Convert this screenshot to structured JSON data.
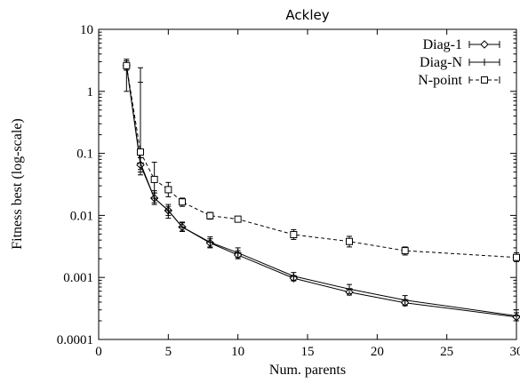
{
  "chart_data": {
    "type": "line",
    "title": "Ackley",
    "xlabel": "Num. parents",
    "ylabel": "Fitness best (log-scale)",
    "xlim": [
      0,
      30
    ],
    "ylim": [
      0.0001,
      10
    ],
    "y_scale": "log",
    "grid": false,
    "legend_position": "top-right",
    "x_ticks": [
      0,
      5,
      10,
      15,
      20,
      25,
      30
    ],
    "x_tick_labels": [
      "0",
      "5",
      "10",
      "15",
      "20",
      "25",
      "30"
    ],
    "y_ticks": [
      0.0001,
      0.001,
      0.01,
      0.1,
      1,
      10
    ],
    "y_tick_labels": [
      "0.0001",
      "0.001",
      "0.01",
      "0.1",
      "1",
      "10"
    ],
    "x": [
      2,
      3,
      4,
      5,
      6,
      8,
      10,
      14,
      18,
      22,
      30
    ],
    "series": [
      {
        "name": "Diag-1",
        "line_style": "solid",
        "marker": "diamond",
        "values": [
          2.6,
          0.065,
          0.019,
          0.012,
          0.0065,
          0.0036,
          0.0023,
          0.00097,
          0.00058,
          0.00039,
          0.00023
        ],
        "err_low": [
          2.2,
          0.05,
          0.016,
          0.01,
          0.0056,
          0.0031,
          0.002,
          0.00088,
          0.00052,
          0.00035,
          0.0002
        ],
        "err_high": [
          3.1,
          0.085,
          0.023,
          0.014,
          0.0076,
          0.0042,
          0.0027,
          0.00107,
          0.00066,
          0.00044,
          0.00027
        ]
      },
      {
        "name": "Diag-N",
        "line_style": "solid",
        "marker": "plus",
        "values": [
          2.6,
          0.07,
          0.019,
          0.012,
          0.0065,
          0.0037,
          0.0025,
          0.00105,
          0.00065,
          0.00043,
          0.00024
        ],
        "err_low": [
          1.0,
          0.045,
          0.015,
          0.009,
          0.0055,
          0.003,
          0.0021,
          0.0009,
          0.00055,
          0.00036,
          0.0002
        ],
        "err_high": [
          3.3,
          2.4,
          0.025,
          0.015,
          0.0078,
          0.0045,
          0.003,
          0.0012,
          0.00077,
          0.00051,
          0.0003
        ]
      },
      {
        "name": "N-point",
        "line_style": "dashed",
        "marker": "square",
        "values": [
          2.6,
          0.105,
          0.038,
          0.026,
          0.0165,
          0.0099,
          0.0087,
          0.0049,
          0.0038,
          0.0027,
          0.0021
        ],
        "err_low": [
          2.2,
          0.055,
          0.023,
          0.02,
          0.014,
          0.0087,
          0.0078,
          0.0041,
          0.0031,
          0.0023,
          0.0018
        ],
        "err_high": [
          3.1,
          1.4,
          0.072,
          0.034,
          0.019,
          0.0112,
          0.0096,
          0.0059,
          0.0046,
          0.0031,
          0.0025
        ]
      }
    ]
  }
}
